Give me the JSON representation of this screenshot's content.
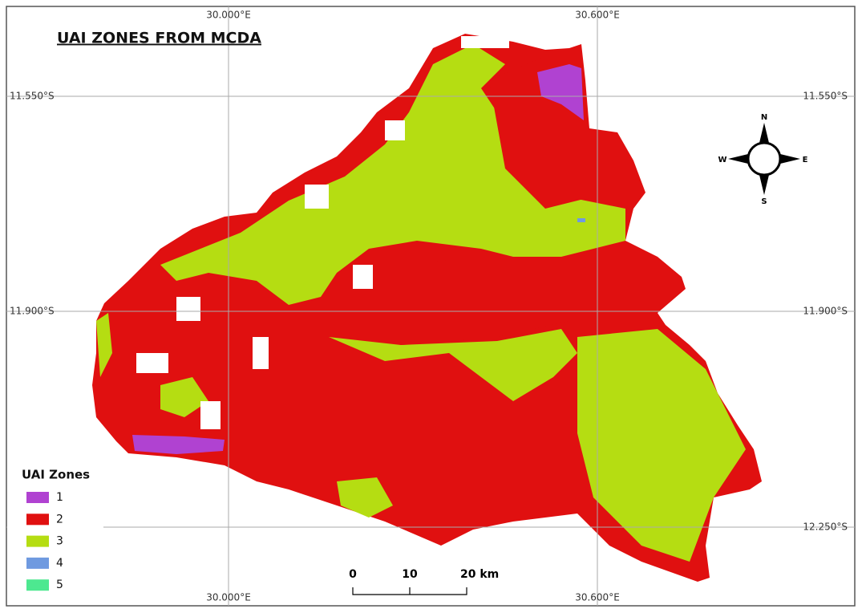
{
  "title": "UAI ZONES FROM MCDA",
  "graticule": {
    "top": [
      "30.000°E",
      "30.600°E"
    ],
    "bottom": [
      "30.000°E",
      "30.600°E"
    ],
    "left": [
      "11.550°S",
      "11.900°S",
      "12.250°S"
    ],
    "right": [
      "11.550°S",
      "11.900°S",
      "12.250°S"
    ]
  },
  "legend": {
    "title": "UAI Zones",
    "items": [
      {
        "label": "1",
        "color": "#b042d1"
      },
      {
        "label": "2",
        "color": "#e01010"
      },
      {
        "label": "3",
        "color": "#b5dd12"
      },
      {
        "label": "4",
        "color": "#6f9ae0"
      },
      {
        "label": "5",
        "color": "#4de890"
      }
    ]
  },
  "scale_bar": {
    "labels": [
      "0",
      "10",
      "20 km"
    ]
  },
  "north_arrow": {
    "n": "N",
    "s": "S",
    "e": "E",
    "w": "W"
  }
}
